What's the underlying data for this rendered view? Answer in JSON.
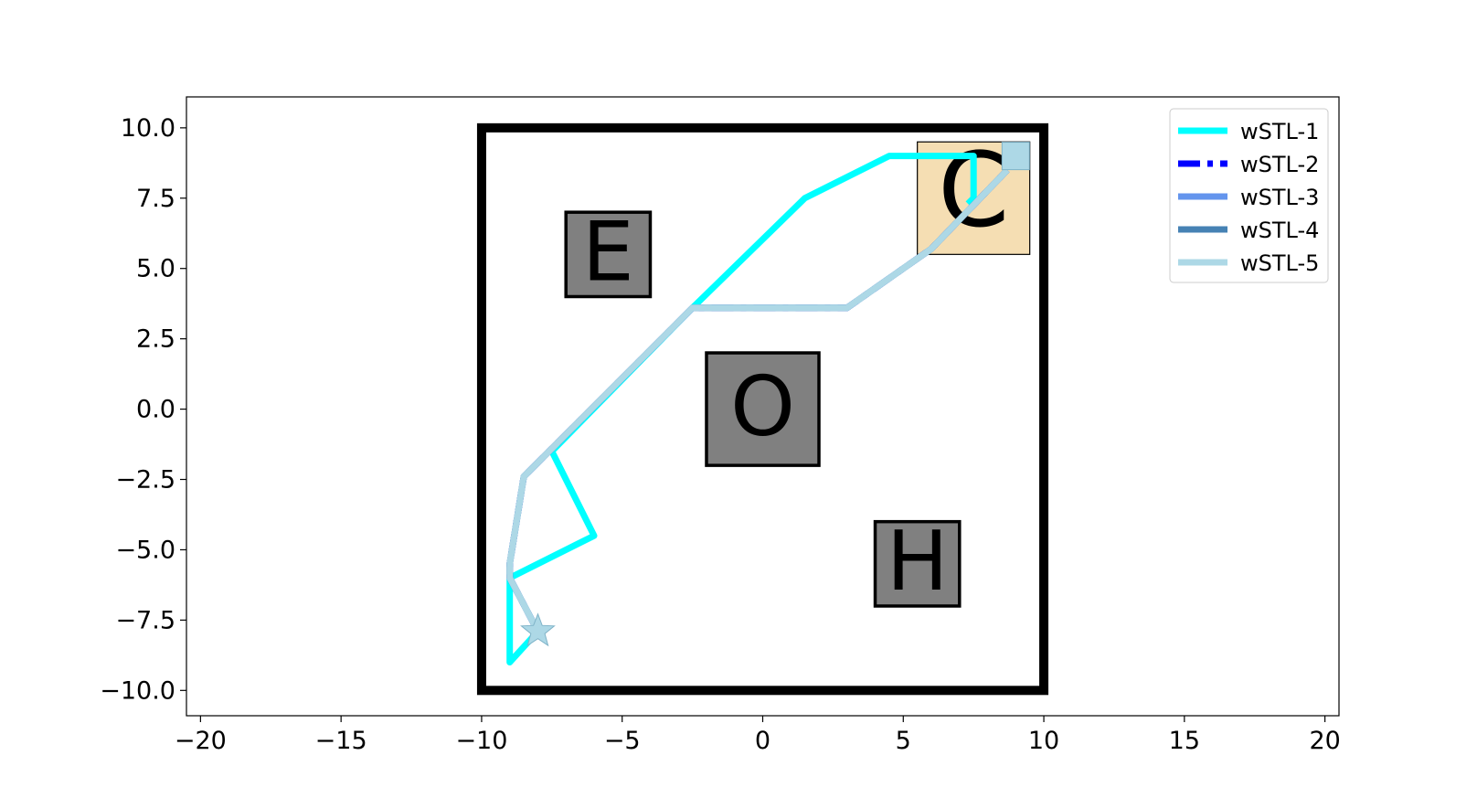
{
  "chart_data": {
    "type": "line",
    "title": "",
    "xlabel": "",
    "ylabel": "",
    "xlim": [
      -20.5,
      20.5
    ],
    "ylim": [
      -10.9,
      11.1
    ],
    "xticks": [
      -20,
      -15,
      -10,
      -5,
      0,
      5,
      10,
      15,
      20
    ],
    "yticks": [
      10.0,
      7.5,
      5.0,
      2.5,
      0.0,
      -2.5,
      -5.0,
      -7.5,
      -10.0
    ],
    "xtick_labels": [
      "−20",
      "−15",
      "−10",
      "−5",
      "0",
      "5",
      "10",
      "15",
      "20"
    ],
    "ytick_labels": [
      "10.0",
      "7.5",
      "5.0",
      "2.5",
      "0.0",
      "−2.5",
      "−5.0",
      "−7.5",
      "−10.0"
    ],
    "grid": false,
    "legend_position": "top-right",
    "workspace_boundary": {
      "x": [
        -10,
        10
      ],
      "y": [
        -10,
        10
      ],
      "color": "#000000"
    },
    "regions": [
      {
        "label": "E",
        "x": [
          -7,
          -4
        ],
        "y": [
          4,
          7
        ],
        "color": "#808080"
      },
      {
        "label": "O",
        "x": [
          -2,
          2
        ],
        "y": [
          -2,
          2
        ],
        "color": "#808080"
      },
      {
        "label": "H",
        "x": [
          4,
          7
        ],
        "y": [
          -7,
          -4
        ],
        "color": "#808080"
      },
      {
        "label": "C",
        "x": [
          5.5,
          9.5
        ],
        "y": [
          5.5,
          9.5
        ],
        "color": "#f5deb3"
      }
    ],
    "start_marker": {
      "shape": "star",
      "x": -8,
      "y": -7.9,
      "color": "#add8e6"
    },
    "goal_marker": {
      "shape": "square",
      "x": 9,
      "y": 9,
      "color": "#add8e6"
    },
    "series": [
      {
        "name": "wSTL-1",
        "color": "#00ffff",
        "style": "solid",
        "points": [
          [
            -8,
            -7.9
          ],
          [
            -9,
            -9
          ],
          [
            -9,
            -6
          ],
          [
            -6,
            -4.5
          ],
          [
            -7.5,
            -1.5
          ],
          [
            -2.5,
            3.6
          ],
          [
            1.5,
            7.5
          ],
          [
            4.5,
            9
          ],
          [
            7.5,
            9
          ],
          [
            7.5,
            7.5
          ],
          [
            7.3,
            7.3
          ]
        ]
      },
      {
        "name": "wSTL-2",
        "color": "#0000ff",
        "style": "dashdot",
        "points": [
          [
            -8,
            -7.9
          ],
          [
            -9,
            -6
          ],
          [
            -9,
            -5.5
          ],
          [
            -8.5,
            -2.4
          ],
          [
            -2.5,
            3.6
          ],
          [
            3,
            3.6
          ],
          [
            6,
            5.7
          ],
          [
            8.7,
            8.5
          ]
        ]
      },
      {
        "name": "wSTL-3",
        "color": "#6495ed",
        "style": "solid",
        "points": [
          [
            -8,
            -7.9
          ],
          [
            -9,
            -6
          ],
          [
            -9,
            -5.5
          ],
          [
            -8.5,
            -2.4
          ],
          [
            -2.5,
            3.6
          ],
          [
            3,
            3.6
          ],
          [
            6,
            5.7
          ],
          [
            8.7,
            8.5
          ]
        ]
      },
      {
        "name": "wSTL-4",
        "color": "#4682b4",
        "style": "solid",
        "points": [
          [
            -8,
            -7.9
          ],
          [
            -9,
            -6
          ],
          [
            -9,
            -5.5
          ],
          [
            -8.5,
            -2.4
          ],
          [
            -2.5,
            3.6
          ],
          [
            3,
            3.6
          ],
          [
            6,
            5.7
          ],
          [
            8.7,
            8.5
          ]
        ]
      },
      {
        "name": "wSTL-5",
        "color": "#add8e6",
        "style": "solid",
        "points": [
          [
            -8,
            -7.9
          ],
          [
            -9,
            -6
          ],
          [
            -9,
            -5.5
          ],
          [
            -8.5,
            -2.4
          ],
          [
            -2.5,
            3.6
          ],
          [
            3,
            3.6
          ],
          [
            6,
            5.7
          ],
          [
            8.7,
            8.5
          ]
        ]
      }
    ]
  }
}
